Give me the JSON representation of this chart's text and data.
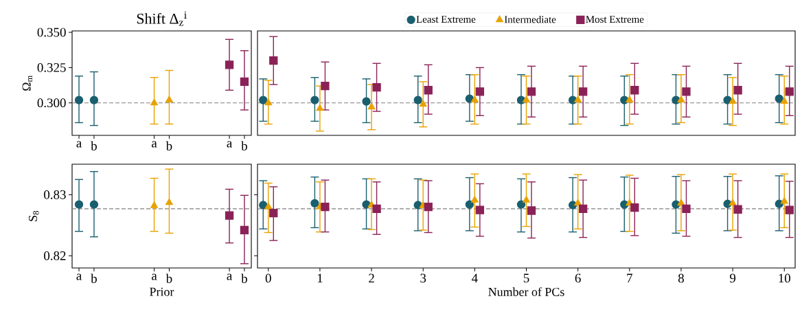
{
  "chart_data": [
    {
      "type": "scatter",
      "title": "Shift Δ$_{z}$$^{i}$",
      "ylabel": "Ω$_{m}$",
      "ylim": [
        0.277,
        0.351
      ],
      "categories": [
        "a",
        "b",
        null,
        null,
        null,
        "a",
        "b",
        null,
        null,
        null,
        "a",
        "b"
      ],
      "yticks": [
        {
          "value": 0.3,
          "label": "0.300"
        },
        {
          "value": 0.325,
          "label": "0.325"
        },
        {
          "value": 0.35,
          "label": "0.350"
        }
      ],
      "ref_lines": [
        {
          "axis": "y",
          "value": 0.3,
          "color": "#808080",
          "line_style": "dashed"
        }
      ],
      "series": [
        {
          "color": "#1a5f6e",
          "marker": "circle",
          "values": [
            0.302,
            0.302,
            null,
            null,
            null,
            null,
            null,
            null,
            null,
            null,
            null,
            null
          ],
          "errors": [
            [
              0.286,
              0.319
            ],
            [
              0.284,
              0.322
            ],
            null,
            null,
            null,
            null,
            null,
            null,
            null,
            null,
            null,
            null
          ]
        },
        {
          "color": "#e8a200",
          "marker": "triangle",
          "values": [
            null,
            null,
            null,
            null,
            null,
            0.3,
            0.302,
            null,
            null,
            null,
            null,
            null
          ],
          "errors": [
            null,
            null,
            null,
            null,
            null,
            [
              0.285,
              0.318
            ],
            [
              0.285,
              0.323
            ],
            null,
            null,
            null,
            null,
            null
          ]
        },
        {
          "color": "#8b2257",
          "marker": "square",
          "values": [
            null,
            null,
            null,
            null,
            null,
            null,
            null,
            null,
            null,
            null,
            0.327,
            0.315
          ],
          "errors": [
            null,
            null,
            null,
            null,
            null,
            null,
            null,
            null,
            null,
            null,
            [
              0.309,
              0.345
            ],
            [
              0.295,
              0.337
            ]
          ]
        }
      ]
    },
    {
      "type": "scatter",
      "xlim": [
        -0.21,
        10.21
      ],
      "ylim": [
        0.277,
        0.351
      ],
      "tick_labels": false,
      "legend": "top",
      "ref_lines": [
        {
          "axis": "y",
          "value": 0.3,
          "color": "#808080",
          "line_style": "dashed"
        }
      ],
      "series": [
        {
          "name": "Least Extreme",
          "color": "#1a5f6e",
          "marker": "circle",
          "x": [
            -0.1,
            0.9,
            1.9,
            2.9,
            3.9,
            4.9,
            5.9,
            6.9,
            7.9,
            8.9,
            9.9
          ],
          "values": [
            0.302,
            0.302,
            0.301,
            0.302,
            0.303,
            0.302,
            0.302,
            0.302,
            0.302,
            0.302,
            0.303
          ],
          "errors": [
            [
              0.287,
              0.317
            ],
            [
              0.287,
              0.318
            ],
            [
              0.286,
              0.317
            ],
            [
              0.286,
              0.319
            ],
            [
              0.287,
              0.32
            ],
            [
              0.285,
              0.32
            ],
            [
              0.285,
              0.319
            ],
            [
              0.284,
              0.319
            ],
            [
              0.285,
              0.32
            ],
            [
              0.285,
              0.32
            ],
            [
              0.286,
              0.32
            ]
          ]
        },
        {
          "name": "Intermediate",
          "color": "#e8a200",
          "marker": "triangle",
          "x": [
            0,
            1,
            2,
            3,
            4,
            5,
            6,
            7,
            8,
            9,
            10
          ],
          "values": [
            0.3,
            0.296,
            0.297,
            0.299,
            0.302,
            0.302,
            0.302,
            0.302,
            0.302,
            0.301,
            0.301
          ],
          "errors": [
            [
              0.285,
              0.316
            ],
            [
              0.28,
              0.312
            ],
            [
              0.281,
              0.313
            ],
            [
              0.283,
              0.315
            ],
            [
              0.285,
              0.32
            ],
            [
              0.285,
              0.319
            ],
            [
              0.285,
              0.319
            ],
            [
              0.285,
              0.32
            ],
            [
              0.286,
              0.32
            ],
            [
              0.284,
              0.318
            ],
            [
              0.285,
              0.319
            ]
          ]
        },
        {
          "name": "Most Extreme",
          "color": "#8b2257",
          "marker": "square",
          "x": [
            0.1,
            1.1,
            2.1,
            3.1,
            4.1,
            5.1,
            6.1,
            7.1,
            8.1,
            9.1,
            10.1
          ],
          "values": [
            0.33,
            0.312,
            0.311,
            0.309,
            0.308,
            0.308,
            0.308,
            0.309,
            0.308,
            0.309,
            0.308
          ],
          "errors": [
            [
              0.313,
              0.347
            ],
            [
              0.295,
              0.329
            ],
            [
              0.294,
              0.328
            ],
            [
              0.292,
              0.327
            ],
            [
              0.291,
              0.325
            ],
            [
              0.29,
              0.326
            ],
            [
              0.29,
              0.326
            ],
            [
              0.292,
              0.328
            ],
            [
              0.29,
              0.326
            ],
            [
              0.292,
              0.328
            ],
            [
              0.291,
              0.326
            ]
          ]
        }
      ]
    },
    {
      "type": "scatter",
      "xlabel": "Prior",
      "ylabel": "S$_{8}$",
      "ylim": [
        0.818,
        0.835
      ],
      "categories": [
        "a",
        "b",
        null,
        null,
        null,
        "a",
        "b",
        null,
        null,
        null,
        "a",
        "b"
      ],
      "yticks": [
        {
          "value": 0.82,
          "label": "0.82"
        },
        {
          "value": 0.83,
          "label": "0.83"
        }
      ],
      "ref_lines": [
        {
          "axis": "y",
          "value": 0.8277,
          "color": "#808080",
          "line_style": "dashed"
        }
      ],
      "series": [
        {
          "color": "#1a5f6e",
          "marker": "circle",
          "values": [
            0.8284,
            0.8284,
            null,
            null,
            null,
            null,
            null,
            null,
            null,
            null,
            null,
            null
          ],
          "errors": [
            [
              0.824,
              0.8325
            ],
            [
              0.8231,
              0.8338
            ],
            null,
            null,
            null,
            null,
            null,
            null,
            null,
            null,
            null,
            null
          ]
        },
        {
          "color": "#e8a200",
          "marker": "triangle",
          "values": [
            null,
            null,
            null,
            null,
            null,
            0.8282,
            0.8287,
            null,
            null,
            null,
            null,
            null
          ],
          "errors": [
            null,
            null,
            null,
            null,
            null,
            [
              0.824,
              0.8327
            ],
            [
              0.8237,
              0.8342
            ],
            null,
            null,
            null,
            null,
            null
          ]
        },
        {
          "color": "#8b2257",
          "marker": "square",
          "values": [
            null,
            null,
            null,
            null,
            null,
            null,
            null,
            null,
            null,
            null,
            0.8266,
            0.8242
          ],
          "errors": [
            null,
            null,
            null,
            null,
            null,
            null,
            null,
            null,
            null,
            null,
            [
              0.8221,
              0.8309
            ],
            [
              0.8187,
              0.8299
            ]
          ]
        }
      ]
    },
    {
      "type": "scatter",
      "xlabel": "Number of PCs",
      "xlim": [
        -0.21,
        10.21
      ],
      "ylim": [
        0.818,
        0.835
      ],
      "tick_labels": "x",
      "xticks": [
        0,
        1,
        2,
        3,
        4,
        5,
        6,
        7,
        8,
        9,
        10
      ],
      "yticks": [
        {
          "value": 0.82,
          "label": null
        },
        {
          "value": 0.83,
          "label": null
        }
      ],
      "ref_lines": [
        {
          "axis": "y",
          "value": 0.8277,
          "color": "#808080",
          "line_style": "dashed"
        }
      ],
      "series": [
        {
          "color": "#1a5f6e",
          "marker": "circle",
          "x": [
            -0.1,
            0.9,
            1.9,
            2.9,
            3.9,
            4.9,
            5.9,
            6.9,
            7.9,
            8.9,
            9.9
          ],
          "values": [
            0.8283,
            0.8286,
            0.8284,
            0.8283,
            0.8284,
            0.8284,
            0.8283,
            0.8284,
            0.8284,
            0.8285,
            0.8285
          ],
          "errors": [
            [
              0.8244,
              0.8323
            ],
            [
              0.8246,
              0.8329
            ],
            [
              0.8244,
              0.8326
            ],
            [
              0.8241,
              0.8326
            ],
            [
              0.8241,
              0.8328
            ],
            [
              0.8239,
              0.8326
            ],
            [
              0.8239,
              0.8328
            ],
            [
              0.824,
              0.8329
            ],
            [
              0.8237,
              0.833
            ],
            [
              0.8241,
              0.833
            ],
            [
              0.8241,
              0.8331
            ]
          ]
        },
        {
          "color": "#e8a200",
          "marker": "triangle",
          "x": [
            0,
            1,
            2,
            3,
            4,
            5,
            6,
            7,
            8,
            9,
            10
          ],
          "values": [
            0.828,
            0.828,
            0.8283,
            0.8282,
            0.8291,
            0.8291,
            0.8286,
            0.8286,
            0.8286,
            0.8286,
            0.8289
          ],
          "errors": [
            [
              0.8238,
              0.8319
            ],
            [
              0.8239,
              0.8321
            ],
            [
              0.8243,
              0.8326
            ],
            [
              0.8242,
              0.8324
            ],
            [
              0.8247,
              0.8334
            ],
            [
              0.8248,
              0.8334
            ],
            [
              0.8244,
              0.8333
            ],
            [
              0.824,
              0.8332
            ],
            [
              0.8241,
              0.8333
            ],
            [
              0.8242,
              0.8334
            ],
            [
              0.8246,
              0.8334
            ]
          ]
        },
        {
          "color": "#8b2257",
          "marker": "square",
          "x": [
            0.1,
            1.1,
            2.1,
            3.1,
            4.1,
            5.1,
            6.1,
            7.1,
            8.1,
            9.1,
            10.1
          ],
          "values": [
            0.827,
            0.828,
            0.8277,
            0.828,
            0.8275,
            0.8274,
            0.8277,
            0.8279,
            0.8277,
            0.8276,
            0.8275
          ],
          "errors": [
            [
              0.8225,
              0.8313
            ],
            [
              0.8239,
              0.8324
            ],
            [
              0.8235,
              0.8321
            ],
            [
              0.8238,
              0.8323
            ],
            [
              0.8232,
              0.8318
            ],
            [
              0.8229,
              0.8321
            ],
            [
              0.823,
              0.8324
            ],
            [
              0.8233,
              0.8327
            ],
            [
              0.8232,
              0.8323
            ],
            [
              0.823,
              0.8323
            ],
            [
              0.823,
              0.8322
            ]
          ]
        }
      ]
    }
  ]
}
